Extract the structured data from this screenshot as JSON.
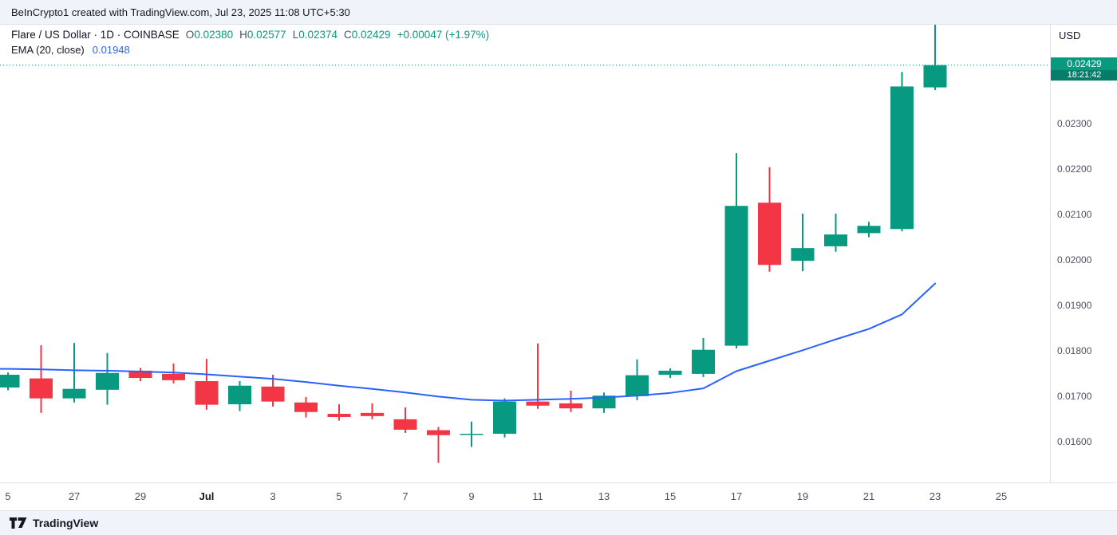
{
  "top_bar": {
    "text": "BeInCrypto1 created with TradingView.com, Jul 23, 2025 11:08 UTC+5:30"
  },
  "legend": {
    "title": "Flare / US Dollar · 1D · COINBASE",
    "ohlc": [
      {
        "label": "O",
        "value": "0.02380"
      },
      {
        "label": "H",
        "value": "0.02577"
      },
      {
        "label": "L",
        "value": "0.02374"
      },
      {
        "label": "C",
        "value": "0.02429"
      }
    ],
    "change": "+0.00047 (+1.97%)",
    "indicator": {
      "name": "EMA (20, close)",
      "value": "0.01948"
    }
  },
  "price_axis": {
    "currency": "USD",
    "labels": [
      "0.02300",
      "0.02200",
      "0.02100",
      "0.02000",
      "0.01900",
      "0.01800",
      "0.01700",
      "0.01600"
    ],
    "price_badge": {
      "price": "0.02429",
      "countdown": "18:21:42"
    }
  },
  "time_axis": {
    "labels": [
      {
        "text": "5",
        "i": 0
      },
      {
        "text": "27",
        "i": 2
      },
      {
        "text": "29",
        "i": 4
      },
      {
        "text": "Jul",
        "i": 6,
        "bold": true
      },
      {
        "text": "3",
        "i": 8
      },
      {
        "text": "5",
        "i": 10
      },
      {
        "text": "7",
        "i": 12
      },
      {
        "text": "9",
        "i": 14
      },
      {
        "text": "11",
        "i": 16
      },
      {
        "text": "13",
        "i": 18
      },
      {
        "text": "15",
        "i": 20
      },
      {
        "text": "17",
        "i": 22
      },
      {
        "text": "19",
        "i": 24
      },
      {
        "text": "21",
        "i": 26
      },
      {
        "text": "23",
        "i": 28
      },
      {
        "text": "25",
        "i": 30
      }
    ]
  },
  "footer": {
    "brand": "TradingView"
  },
  "colors": {
    "up": "#089981",
    "down": "#f23645",
    "ema": "#2962ff",
    "bar_bg": "#f0f3fa",
    "text": "#131722",
    "axis_text": "#4c525e"
  },
  "chart_data": {
    "type": "candlestick",
    "title": "Flare / US Dollar",
    "interval": "1D",
    "exchange": "COINBASE",
    "currency": "USD",
    "close_price": 0.02429,
    "ylim": [
      0.0151,
      0.02518
    ],
    "indicator": {
      "name": "EMA",
      "length": 20,
      "source": "close",
      "last_value": 0.01948
    },
    "candles": [
      {
        "date": "Jun 25",
        "o": 0.01719,
        "h": 0.01752,
        "l": 0.01713,
        "c": 0.01747
      },
      {
        "date": "Jun 26",
        "o": 0.01739,
        "h": 0.01812,
        "l": 0.01663,
        "c": 0.01695
      },
      {
        "date": "Jun 27",
        "o": 0.01695,
        "h": 0.01817,
        "l": 0.01686,
        "c": 0.01716
      },
      {
        "date": "Jun 28",
        "o": 0.01714,
        "h": 0.01795,
        "l": 0.01681,
        "c": 0.01751
      },
      {
        "date": "Jun 29",
        "o": 0.01756,
        "h": 0.01762,
        "l": 0.01733,
        "c": 0.0174
      },
      {
        "date": "Jun 30",
        "o": 0.01749,
        "h": 0.01772,
        "l": 0.01728,
        "c": 0.01735
      },
      {
        "date": "Jul 1",
        "o": 0.01733,
        "h": 0.01782,
        "l": 0.0167,
        "c": 0.01681
      },
      {
        "date": "Jul 2",
        "o": 0.01682,
        "h": 0.01733,
        "l": 0.01667,
        "c": 0.01723
      },
      {
        "date": "Jul 3",
        "o": 0.01721,
        "h": 0.01747,
        "l": 0.01677,
        "c": 0.01688
      },
      {
        "date": "Jul 4",
        "o": 0.01686,
        "h": 0.01698,
        "l": 0.01653,
        "c": 0.01665
      },
      {
        "date": "Jul 5",
        "o": 0.01661,
        "h": 0.01682,
        "l": 0.01646,
        "c": 0.01654
      },
      {
        "date": "Jul 6",
        "o": 0.01663,
        "h": 0.01684,
        "l": 0.01649,
        "c": 0.01656
      },
      {
        "date": "Jul 7",
        "o": 0.01649,
        "h": 0.01675,
        "l": 0.01619,
        "c": 0.01626
      },
      {
        "date": "Jul 8",
        "o": 0.01625,
        "h": 0.01632,
        "l": 0.01553,
        "c": 0.01614
      },
      {
        "date": "Jul 9",
        "o": 0.01615,
        "h": 0.01644,
        "l": 0.01588,
        "c": 0.01617
      },
      {
        "date": "Jul 10",
        "o": 0.01617,
        "h": 0.01695,
        "l": 0.01609,
        "c": 0.01688
      },
      {
        "date": "Jul 11",
        "o": 0.01688,
        "h": 0.01816,
        "l": 0.01672,
        "c": 0.01679
      },
      {
        "date": "Jul 12",
        "o": 0.01684,
        "h": 0.01712,
        "l": 0.01665,
        "c": 0.01673
      },
      {
        "date": "Jul 13",
        "o": 0.01673,
        "h": 0.01708,
        "l": 0.01663,
        "c": 0.01701
      },
      {
        "date": "Jul 14",
        "o": 0.017,
        "h": 0.01781,
        "l": 0.01691,
        "c": 0.01746
      },
      {
        "date": "Jul 15",
        "o": 0.01747,
        "h": 0.01761,
        "l": 0.0174,
        "c": 0.01756
      },
      {
        "date": "Jul 16",
        "o": 0.01749,
        "h": 0.01828,
        "l": 0.01742,
        "c": 0.01802
      },
      {
        "date": "Jul 17",
        "o": 0.01811,
        "h": 0.02235,
        "l": 0.01805,
        "c": 0.02119
      },
      {
        "date": "Jul 18",
        "o": 0.02126,
        "h": 0.02204,
        "l": 0.01974,
        "c": 0.01989
      },
      {
        "date": "Jul 19",
        "o": 0.01998,
        "h": 0.02102,
        "l": 0.01975,
        "c": 0.02026
      },
      {
        "date": "Jul 20",
        "o": 0.0203,
        "h": 0.02102,
        "l": 0.02018,
        "c": 0.02056
      },
      {
        "date": "Jul 21",
        "o": 0.02059,
        "h": 0.02084,
        "l": 0.0205,
        "c": 0.02075
      },
      {
        "date": "Jul 22",
        "o": 0.02068,
        "h": 0.02414,
        "l": 0.02063,
        "c": 0.02382
      },
      {
        "date": "Jul 23",
        "o": 0.0238,
        "h": 0.02577,
        "l": 0.02374,
        "c": 0.02429
      }
    ],
    "ema20": [
      0.0176,
      0.01759,
      0.01757,
      0.01756,
      0.01754,
      0.01752,
      0.01748,
      0.01743,
      0.01738,
      0.01731,
      0.01723,
      0.01716,
      0.01708,
      0.01699,
      0.01692,
      0.0169,
      0.01692,
      0.01694,
      0.01697,
      0.01701,
      0.01707,
      0.01717,
      0.01755,
      0.01778,
      0.01801,
      0.01825,
      0.01848,
      0.0188,
      0.01948
    ]
  }
}
